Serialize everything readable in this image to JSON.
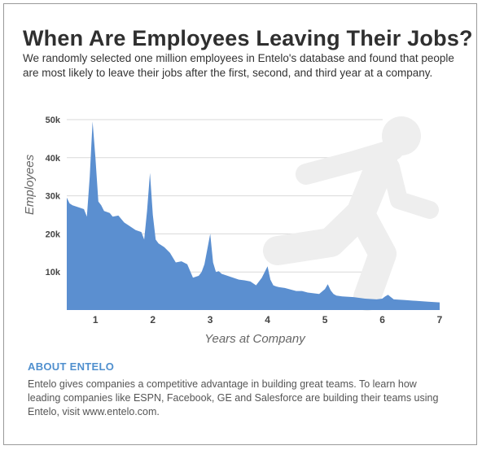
{
  "header": {
    "title": "When Are Employees Leaving Their Jobs?",
    "subtitle": "We randomly selected one million employees in Entelo's database and found that people are most likely to leave their jobs after the first, second, and third year at a company."
  },
  "about": {
    "title": "ABOUT ENTELO",
    "text": "Entelo gives companies a competitive advantage in building great teams. To learn how leading companies like ESPN, Facebook, GE and Salesforce are building their teams using Entelo, visit www.entelo.com."
  },
  "colors": {
    "area": "#5b8fd0",
    "figure": "#eeeeee",
    "grid": "#d9d9d9",
    "about": "#4f8fce"
  },
  "icons": {
    "background": "running-person-icon"
  },
  "chart_data": {
    "type": "area",
    "xlabel": "Years at Company",
    "ylabel": "Employees",
    "xlim": [
      0.5,
      7
    ],
    "ylim": [
      0,
      50000
    ],
    "xticks": [
      "1",
      "2",
      "3",
      "4",
      "5",
      "6",
      "7"
    ],
    "yticks": [
      "10k",
      "20k",
      "30k",
      "40k",
      "50k"
    ],
    "grid": true,
    "series": [
      {
        "x": [
          0.5,
          0.55,
          0.6,
          0.7,
          0.8,
          0.85,
          0.9,
          0.95,
          1.0,
          1.05,
          1.1,
          1.15,
          1.25,
          1.3,
          1.4,
          1.5,
          1.6,
          1.7,
          1.8,
          1.85,
          1.9,
          1.95,
          2.0,
          2.05,
          2.1,
          2.2,
          2.3,
          2.4,
          2.5,
          2.6,
          2.7,
          2.8,
          2.85,
          2.9,
          3.0,
          3.05,
          3.1,
          3.15,
          3.2,
          3.3,
          3.4,
          3.5,
          3.6,
          3.7,
          3.8,
          3.9,
          4.0,
          4.05,
          4.1,
          4.15,
          4.2,
          4.3,
          4.4,
          4.5,
          4.6,
          4.7,
          4.8,
          4.9,
          5.0,
          5.05,
          5.1,
          5.15,
          5.2,
          5.3,
          5.5,
          5.7,
          5.9,
          6.0,
          6.05,
          6.1,
          6.15,
          6.2,
          6.4,
          6.6,
          6.8,
          7.0
        ],
        "y": [
          29500,
          28000,
          27500,
          27000,
          26500,
          24500,
          35000,
          49500,
          40000,
          28500,
          27500,
          26000,
          25500,
          24500,
          24800,
          23000,
          22000,
          21000,
          20500,
          18500,
          26000,
          36000,
          25000,
          18500,
          17500,
          16500,
          15000,
          12500,
          12800,
          12000,
          8500,
          9000,
          10000,
          12000,
          20000,
          12500,
          10000,
          10200,
          9500,
          9000,
          8500,
          8000,
          7800,
          7500,
          6500,
          8500,
          11500,
          8000,
          6500,
          6200,
          6000,
          5800,
          5400,
          5000,
          5000,
          4600,
          4400,
          4200,
          5500,
          6800,
          5200,
          4200,
          3800,
          3600,
          3400,
          3000,
          2800,
          3000,
          3600,
          4000,
          3400,
          2800,
          2600,
          2400,
          2200,
          2000
        ]
      }
    ]
  }
}
